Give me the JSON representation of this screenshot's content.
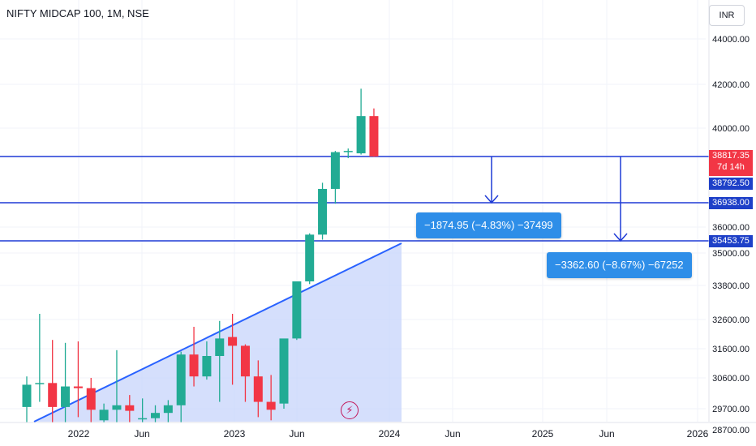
{
  "header": {
    "symbol": "NIFTY MIDCAP 100, 1M, NSE",
    "currency": "INR"
  },
  "colors": {
    "up": "#22ab94",
    "down": "#f23645",
    "line": "#1e3ad6",
    "trend": "#2962ff",
    "fill": "#c7d4fb",
    "label_dark": "#1e40c8",
    "measure": "#2e8ee8"
  },
  "chart_data": {
    "type": "candlestick",
    "y_ticks": [
      "44000.00",
      "42000.00",
      "40000.00",
      "36000.00",
      "35000.00",
      "33800.00",
      "32600.00",
      "31600.00",
      "30600.00",
      "29700.00",
      "28700.00"
    ],
    "x_ticks": [
      "2022",
      "Jun",
      "2023",
      "Jun",
      "2024",
      "Jun",
      "2025",
      "Jun",
      "2026"
    ],
    "candles": [
      {
        "o": 29750,
        "h": 30650,
        "l": 28700,
        "c": 30400
      },
      {
        "o": 30450,
        "h": 32800,
        "l": 29900,
        "c": 30450
      },
      {
        "o": 30450,
        "h": 31900,
        "l": 28400,
        "c": 29750
      },
      {
        "o": 29750,
        "h": 31800,
        "l": 28300,
        "c": 30350
      },
      {
        "o": 30350,
        "h": 31850,
        "l": 29300,
        "c": 30300
      },
      {
        "o": 30300,
        "h": 30600,
        "l": 28200,
        "c": 29650
      },
      {
        "o": 29150,
        "h": 29850,
        "l": 28400,
        "c": 29650
      },
      {
        "o": 29650,
        "h": 31550,
        "l": 28800,
        "c": 29800
      },
      {
        "o": 29800,
        "h": 30100,
        "l": 28900,
        "c": 29600
      },
      {
        "o": 29200,
        "h": 30000,
        "l": 28600,
        "c": 29250
      },
      {
        "o": 29250,
        "h": 29800,
        "l": 28700,
        "c": 29500
      },
      {
        "o": 29500,
        "h": 29950,
        "l": 28900,
        "c": 29800
      },
      {
        "o": 29800,
        "h": 31500,
        "l": 28800,
        "c": 31400
      },
      {
        "o": 31400,
        "h": 32350,
        "l": 30350,
        "c": 30650
      },
      {
        "o": 30650,
        "h": 31850,
        "l": 30550,
        "c": 31350
      },
      {
        "o": 31350,
        "h": 32550,
        "l": 29900,
        "c": 31950
      },
      {
        "o": 32000,
        "h": 32800,
        "l": 30400,
        "c": 31700
      },
      {
        "o": 31700,
        "h": 31750,
        "l": 29900,
        "c": 30650
      },
      {
        "o": 30650,
        "h": 31200,
        "l": 29300,
        "c": 29900
      },
      {
        "o": 29900,
        "h": 30700,
        "l": 29150,
        "c": 29650
      },
      {
        "o": 29850,
        "h": 31900,
        "l": 29700,
        "c": 31950
      },
      {
        "o": 31950,
        "h": 33900,
        "l": 31900,
        "c": 33950
      },
      {
        "o": 33950,
        "h": 35750,
        "l": 33850,
        "c": 35700
      },
      {
        "o": 35700,
        "h": 37750,
        "l": 35500,
        "c": 37500
      },
      {
        "o": 37500,
        "h": 39050,
        "l": 36900,
        "c": 39000
      },
      {
        "o": 39000,
        "h": 39150,
        "l": 38750,
        "c": 39050
      },
      {
        "o": 38950,
        "h": 41800,
        "l": 38900,
        "c": 40550
      },
      {
        "o": 40550,
        "h": 40900,
        "l": 38800,
        "c": 38817.35
      }
    ],
    "horizontal_lines": [
      38817.35,
      36938.0,
      35453.75
    ],
    "price_labels": [
      {
        "value": "38817.35",
        "sub": "7d 14h",
        "color": "#f23645"
      },
      {
        "value": "38792.50",
        "color": "#1e40c8"
      },
      {
        "value": "36938.00",
        "color": "#1e40c8"
      },
      {
        "value": "35453.75",
        "color": "#1e40c8"
      }
    ],
    "measurements": [
      {
        "text": "−1874.95 (−4.83%) −37499"
      },
      {
        "text": "−3362.60 (−8.67%) −67252"
      }
    ]
  }
}
